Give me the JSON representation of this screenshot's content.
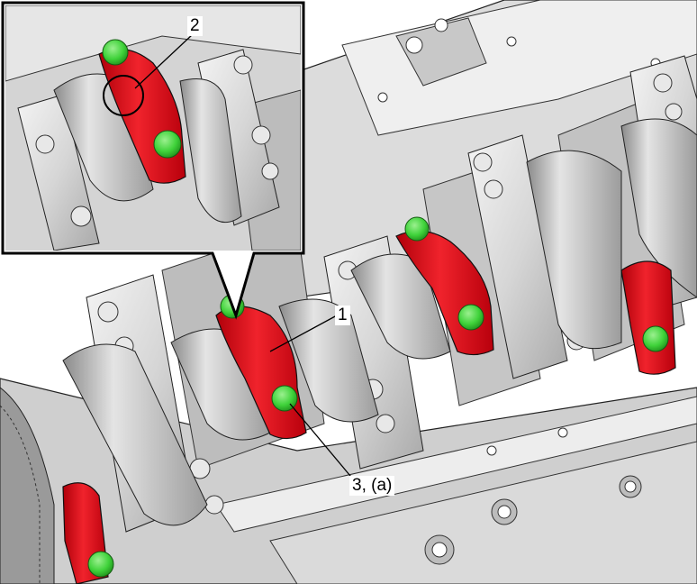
{
  "callouts": {
    "label_1": "1",
    "label_2": "2",
    "label_3": "3, (a)"
  },
  "colors": {
    "bearing_cap": "#e0141e",
    "bolt": "#3fd23a",
    "metal_light": "#e9e9e9",
    "metal_mid": "#bdbdbd",
    "metal_dark": "#7c7c7c",
    "outline": "#000000"
  }
}
